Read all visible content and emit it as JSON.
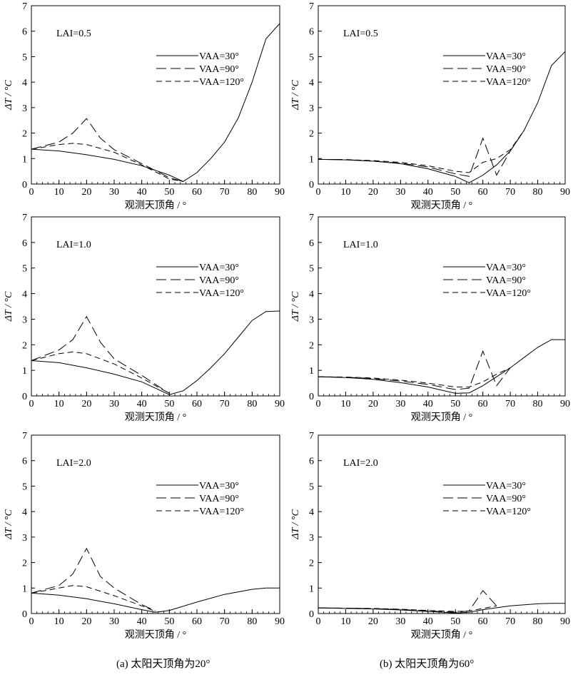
{
  "captions": {
    "left": "(a) 太阳天顶角为20°",
    "right": "(b) 太阳天顶角为60°"
  },
  "chart_data": [
    {
      "type": "line",
      "panel": "a-top",
      "annotation": "LAI=0.5",
      "xlabel": "观测天顶角 / °",
      "ylabel": "ΔT / °C",
      "xlim": [
        0,
        90
      ],
      "ylim": [
        0,
        7
      ],
      "xticks": [
        0,
        10,
        20,
        30,
        40,
        50,
        60,
        70,
        80,
        90
      ],
      "yticks": [
        0,
        1,
        2,
        3,
        4,
        5,
        6,
        7
      ],
      "legend_position": "right-middle",
      "series": [
        {
          "name": "VAA=30°",
          "style": "solid",
          "x": [
            0,
            10,
            20,
            30,
            40,
            50,
            55,
            60,
            65,
            70,
            75,
            80,
            85,
            90
          ],
          "y": [
            1.37,
            1.3,
            1.15,
            0.97,
            0.72,
            0.35,
            0.1,
            0.45,
            1.0,
            1.65,
            2.6,
            4.0,
            5.7,
            6.3
          ]
        },
        {
          "name": "VAA=90°",
          "style": "longdash",
          "x": [
            0,
            10,
            15,
            20,
            25,
            30,
            40,
            50,
            55
          ],
          "y": [
            1.37,
            1.65,
            2.0,
            2.57,
            1.8,
            1.35,
            0.8,
            0.25,
            0.1
          ]
        },
        {
          "name": "VAA=120°",
          "style": "dash",
          "x": [
            0,
            10,
            15,
            20,
            30,
            40,
            50,
            55
          ],
          "y": [
            1.37,
            1.55,
            1.6,
            1.55,
            1.25,
            0.75,
            0.2,
            0.1
          ]
        }
      ]
    },
    {
      "type": "line",
      "panel": "b-top",
      "annotation": "LAI=0.5",
      "xlabel": "观测天顶角 / °",
      "ylabel": "ΔT / °C",
      "xlim": [
        0,
        90
      ],
      "ylim": [
        0,
        7
      ],
      "xticks": [
        0,
        10,
        20,
        30,
        40,
        50,
        60,
        70,
        80,
        90
      ],
      "yticks": [
        0,
        1,
        2,
        3,
        4,
        5,
        6,
        7
      ],
      "legend_position": "right-middle",
      "series": [
        {
          "name": "VAA=30°",
          "style": "solid",
          "x": [
            0,
            10,
            20,
            30,
            40,
            50,
            55,
            60,
            65,
            70,
            75,
            80,
            85,
            90
          ],
          "y": [
            0.97,
            0.95,
            0.9,
            0.8,
            0.6,
            0.3,
            0.05,
            0.35,
            0.75,
            1.3,
            2.1,
            3.2,
            4.65,
            5.2
          ]
        },
        {
          "name": "VAA=90°",
          "style": "longdash",
          "x": [
            0,
            10,
            20,
            30,
            40,
            50,
            55,
            60,
            65,
            70,
            75
          ],
          "y": [
            0.97,
            0.96,
            0.9,
            0.82,
            0.67,
            0.4,
            0.3,
            1.8,
            0.35,
            1.3,
            2.1
          ]
        },
        {
          "name": "VAA=120°",
          "style": "dash",
          "x": [
            0,
            10,
            20,
            30,
            40,
            50,
            55,
            60,
            65,
            70,
            75
          ],
          "y": [
            0.97,
            0.96,
            0.92,
            0.85,
            0.72,
            0.5,
            0.45,
            0.85,
            1.0,
            1.35,
            2.1
          ]
        }
      ]
    },
    {
      "type": "line",
      "panel": "a-middle",
      "annotation": "LAI=1.0",
      "xlabel": "观测天顶角 / °",
      "ylabel": "ΔT / °C",
      "xlim": [
        0,
        90
      ],
      "ylim": [
        0,
        7
      ],
      "xticks": [
        0,
        10,
        20,
        30,
        40,
        50,
        60,
        70,
        80,
        90
      ],
      "yticks": [
        0,
        1,
        2,
        3,
        4,
        5,
        6,
        7
      ],
      "legend_position": "right-middle",
      "series": [
        {
          "name": "VAA=30°",
          "style": "solid",
          "x": [
            0,
            10,
            20,
            30,
            40,
            50,
            55,
            60,
            65,
            70,
            75,
            80,
            85,
            90
          ],
          "y": [
            1.38,
            1.3,
            1.1,
            0.85,
            0.55,
            0.05,
            0.2,
            0.6,
            1.1,
            1.65,
            2.3,
            2.95,
            3.3,
            3.32
          ]
        },
        {
          "name": "VAA=90°",
          "style": "longdash",
          "x": [
            0,
            10,
            15,
            20,
            25,
            30,
            40,
            50
          ],
          "y": [
            1.38,
            1.8,
            2.2,
            3.1,
            2.1,
            1.45,
            0.8,
            0.1
          ]
        },
        {
          "name": "VAA=120°",
          "style": "dash",
          "x": [
            0,
            10,
            15,
            20,
            30,
            40,
            50
          ],
          "y": [
            1.38,
            1.65,
            1.72,
            1.65,
            1.25,
            0.7,
            0.1
          ]
        }
      ]
    },
    {
      "type": "line",
      "panel": "b-middle",
      "annotation": "LAI=1.0",
      "xlabel": "观测天顶角 / °",
      "ylabel": "ΔT / °C",
      "xlim": [
        0,
        90
      ],
      "ylim": [
        0,
        7
      ],
      "xticks": [
        0,
        10,
        20,
        30,
        40,
        50,
        60,
        70,
        80,
        90
      ],
      "yticks": [
        0,
        1,
        2,
        3,
        4,
        5,
        6,
        7
      ],
      "legend_position": "right-middle",
      "series": [
        {
          "name": "VAA=30°",
          "style": "solid",
          "x": [
            0,
            10,
            20,
            30,
            40,
            50,
            55,
            60,
            65,
            70,
            75,
            80,
            85,
            90
          ],
          "y": [
            0.75,
            0.72,
            0.65,
            0.52,
            0.35,
            0.1,
            0.12,
            0.4,
            0.75,
            1.1,
            1.5,
            1.9,
            2.2,
            2.2
          ]
        },
        {
          "name": "VAA=90°",
          "style": "longdash",
          "x": [
            0,
            10,
            20,
            30,
            40,
            50,
            55,
            60,
            65,
            70
          ],
          "y": [
            0.75,
            0.73,
            0.68,
            0.58,
            0.45,
            0.25,
            0.3,
            1.75,
            0.4,
            1.1
          ]
        },
        {
          "name": "VAA=120°",
          "style": "dash",
          "x": [
            0,
            10,
            20,
            30,
            40,
            50,
            55,
            60,
            65,
            70
          ],
          "y": [
            0.75,
            0.74,
            0.7,
            0.62,
            0.5,
            0.35,
            0.35,
            0.55,
            0.85,
            1.1
          ]
        }
      ]
    },
    {
      "type": "line",
      "panel": "a-bottom",
      "annotation": "LAI=2.0",
      "xlabel": "观测天顶角 / °",
      "ylabel": "ΔT / °C",
      "xlim": [
        0,
        90
      ],
      "ylim": [
        0,
        7
      ],
      "xticks": [
        0,
        10,
        20,
        30,
        40,
        50,
        60,
        70,
        80,
        90
      ],
      "yticks": [
        0,
        1,
        2,
        3,
        4,
        5,
        6,
        7
      ],
      "legend_position": "right-middle",
      "series": [
        {
          "name": "VAA=30°",
          "style": "solid",
          "x": [
            0,
            10,
            20,
            30,
            40,
            45,
            50,
            60,
            70,
            80,
            85,
            90
          ],
          "y": [
            0.8,
            0.72,
            0.58,
            0.38,
            0.15,
            0.05,
            0.12,
            0.45,
            0.75,
            0.95,
            1.0,
            1.0
          ]
        },
        {
          "name": "VAA=90°",
          "style": "longdash",
          "x": [
            0,
            10,
            15,
            20,
            25,
            30,
            40,
            45
          ],
          "y": [
            0.8,
            1.1,
            1.55,
            2.55,
            1.45,
            1.0,
            0.35,
            0.1
          ]
        },
        {
          "name": "VAA=120°",
          "style": "dash",
          "x": [
            0,
            10,
            15,
            20,
            30,
            40,
            45
          ],
          "y": [
            0.8,
            1.0,
            1.1,
            1.05,
            0.7,
            0.3,
            0.08
          ]
        }
      ]
    },
    {
      "type": "line",
      "panel": "b-bottom",
      "annotation": "LAI=2.0",
      "xlabel": "观测天顶角 / °",
      "ylabel": "ΔT / °C",
      "xlim": [
        0,
        90
      ],
      "ylim": [
        0,
        7
      ],
      "xticks": [
        0,
        10,
        20,
        30,
        40,
        50,
        60,
        70,
        80,
        90
      ],
      "yticks": [
        0,
        1,
        2,
        3,
        4,
        5,
        6,
        7
      ],
      "legend_position": "right-middle",
      "series": [
        {
          "name": "VAA=30°",
          "style": "solid",
          "x": [
            0,
            10,
            20,
            30,
            40,
            50,
            55,
            60,
            70,
            80,
            85,
            90
          ],
          "y": [
            0.22,
            0.2,
            0.18,
            0.14,
            0.08,
            0.02,
            0.05,
            0.15,
            0.3,
            0.38,
            0.4,
            0.4
          ]
        },
        {
          "name": "VAA=90°",
          "style": "longdash",
          "x": [
            0,
            10,
            20,
            30,
            40,
            50,
            55,
            60,
            65
          ],
          "y": [
            0.22,
            0.21,
            0.19,
            0.16,
            0.1,
            0.05,
            0.1,
            0.9,
            0.3
          ]
        },
        {
          "name": "VAA=120°",
          "style": "dash",
          "x": [
            0,
            10,
            20,
            30,
            40,
            50,
            55,
            60,
            65
          ],
          "y": [
            0.22,
            0.21,
            0.2,
            0.17,
            0.12,
            0.08,
            0.1,
            0.2,
            0.3
          ]
        }
      ]
    }
  ]
}
